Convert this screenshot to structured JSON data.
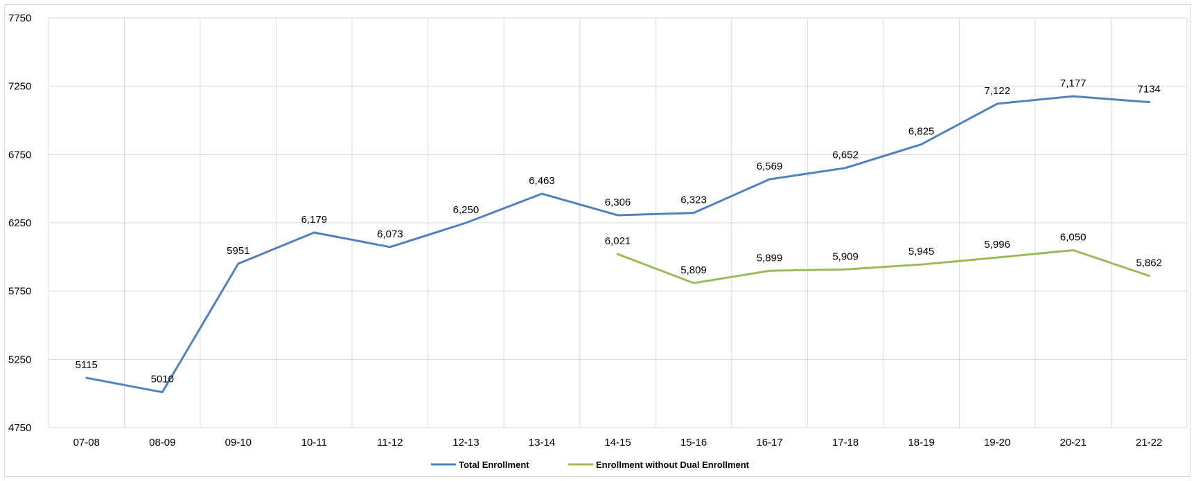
{
  "chart_data": {
    "type": "line",
    "categories": [
      "07-08",
      "08-09",
      "09-10",
      "10-11",
      "11-12",
      "12-13",
      "13-14",
      "14-15",
      "15-16",
      "16-17",
      "17-18",
      "18-19",
      "19-20",
      "20-21",
      "21-22"
    ],
    "ylim": [
      4750,
      7750
    ],
    "yticks": [
      4750,
      5250,
      5750,
      6250,
      6750,
      7250,
      7750
    ],
    "grid": true,
    "legend_position": "bottom",
    "series": [
      {
        "name": "Total Enrollment",
        "color": "#4f81bd",
        "values": [
          5115,
          5010,
          5951,
          6179,
          6073,
          6250,
          6463,
          6306,
          6323,
          6569,
          6652,
          6825,
          7122,
          7177,
          7134
        ],
        "labels": [
          "5115",
          "5010",
          "5951",
          "6,179",
          "6,073",
          "6,250",
          "6,463",
          "6,306",
          "6,323",
          "6,569",
          "6,652",
          "6,825",
          "7,122",
          "7,177",
          "7134"
        ]
      },
      {
        "name": "Enrollment without Dual Enrollment",
        "color": "#9bbb59",
        "values": [
          null,
          null,
          null,
          null,
          null,
          null,
          null,
          6021,
          5809,
          5899,
          5909,
          5945,
          5996,
          6050,
          5862
        ],
        "labels": [
          null,
          null,
          null,
          null,
          null,
          null,
          null,
          "6,021",
          "5,809",
          "5,899",
          "5,909",
          "5,945",
          "5,996",
          "6,050",
          "5,862"
        ]
      }
    ]
  }
}
